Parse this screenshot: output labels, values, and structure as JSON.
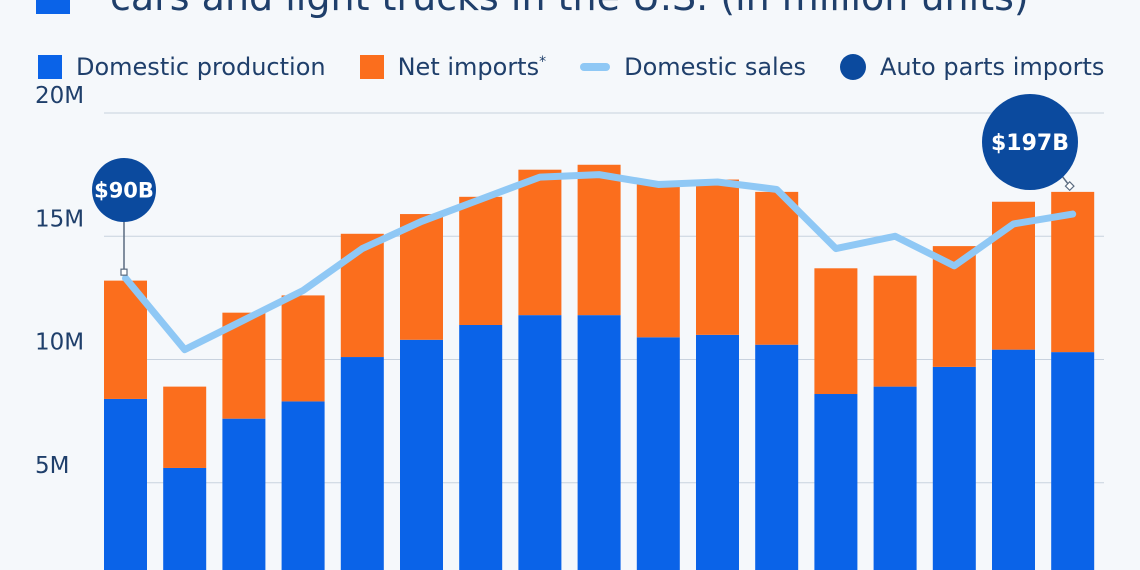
{
  "title": {
    "line2": "cars and light trucks in the U.S. (in million units)"
  },
  "legend": {
    "domestic_production": "Domestic production",
    "net_imports": "Net imports",
    "net_imports_mark": "*",
    "domestic_sales": "Domestic sales",
    "auto_parts_imports": "Auto parts imports"
  },
  "colors": {
    "domestic_production": "#0a63e8",
    "net_imports": "#fb6e1d",
    "domestic_sales": "#8fc8f5",
    "auto_parts_imports": "#0b4a9e",
    "title_text": "#1f3f6b",
    "gridline": "#c8d2de",
    "axis_text": "#1f3f6b"
  },
  "chart_data": {
    "type": "bar",
    "stacked": true,
    "y_ticks": [
      "5M",
      "10M",
      "15M",
      "20M"
    ],
    "y_tick_values": [
      5,
      10,
      15,
      20
    ],
    "ylim": [
      0,
      20.5
    ],
    "series": [
      {
        "name": "Domestic production",
        "values": [
          8.4,
          5.6,
          7.6,
          8.3,
          10.1,
          10.8,
          11.4,
          11.8,
          11.8,
          10.9,
          11.0,
          10.6,
          8.6,
          8.9,
          9.7,
          10.4,
          10.3
        ]
      },
      {
        "name": "Net imports",
        "values": [
          4.8,
          3.3,
          4.3,
          4.3,
          5.0,
          5.1,
          5.2,
          5.9,
          6.1,
          6.3,
          6.3,
          6.2,
          5.1,
          4.5,
          4.9,
          6.0,
          6.5
        ]
      },
      {
        "name": "Domestic sales",
        "type": "line",
        "values": [
          13.3,
          10.4,
          11.6,
          12.8,
          14.5,
          15.6,
          16.5,
          17.4,
          17.5,
          17.1,
          17.2,
          16.9,
          14.5,
          15.0,
          13.8,
          15.5,
          15.9
        ]
      }
    ],
    "annotations": [
      {
        "label": "$90B",
        "index": 0
      },
      {
        "label": "$197B",
        "index": 16
      }
    ]
  }
}
